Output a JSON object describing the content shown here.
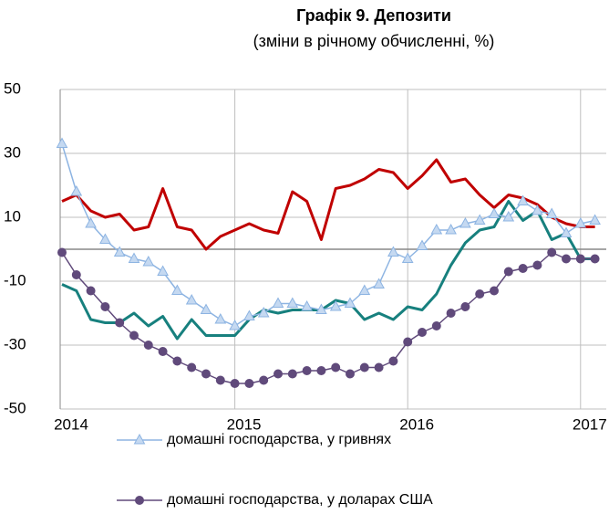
{
  "chart_data": {
    "type": "line",
    "title": "Графік 9. Депозити",
    "subtitle": "(зміни в річному обчисленні, %)",
    "categories": [
      "2014",
      null,
      null,
      null,
      null,
      null,
      null,
      null,
      null,
      null,
      null,
      null,
      "2015",
      null,
      null,
      null,
      null,
      null,
      null,
      null,
      null,
      null,
      null,
      null,
      "2016",
      null,
      null,
      null,
      null,
      null,
      null,
      null,
      null,
      null,
      null,
      null,
      "2017",
      null
    ],
    "series": [
      {
        "name": "домашні господарства, у гривнях",
        "color": "#8db4e2",
        "marker": "triangle",
        "values": [
          33,
          18,
          8,
          3,
          -1,
          -3,
          -4,
          -7,
          -13,
          -16,
          -19,
          -22,
          -24,
          -21,
          -20,
          -17,
          -17,
          -18,
          -19,
          -18,
          -17,
          -13,
          -11,
          -1,
          -3,
          1,
          6,
          6,
          8,
          9,
          11,
          10,
          15,
          12,
          11,
          5,
          8,
          9
        ]
      },
      {
        "name": "домашні господарства, у доларах США",
        "color": "#604a7b",
        "marker": "circle",
        "values": [
          -1,
          -8,
          -13,
          -18,
          -23,
          -27,
          -30,
          -32,
          -35,
          -37,
          -39,
          -41,
          -42,
          -42,
          -41,
          -39,
          -39,
          -38,
          -38,
          -37,
          -39,
          -37,
          -37,
          -35,
          -29,
          -26,
          -24,
          -20,
          -18,
          -14,
          -13,
          -7,
          -6,
          -5,
          -1,
          -3,
          -3,
          -3
        ]
      },
      {
        "color": "#17807e",
        "values": [
          -11,
          -13,
          -22,
          -23,
          -23,
          -20,
          -24,
          -21,
          -28,
          -22,
          -27,
          -27,
          -27,
          -22,
          -19,
          -20,
          -19,
          -19,
          -19,
          -16,
          -17,
          -22,
          -20,
          -22,
          -18,
          -19,
          -14,
          -5,
          2,
          6,
          7,
          15,
          9,
          12,
          3,
          5,
          -3,
          -3
        ]
      },
      {
        "color": "#c00000",
        "values": [
          15,
          17,
          12,
          10,
          11,
          6,
          7,
          19,
          7,
          6,
          0,
          4,
          6,
          8,
          6,
          5,
          18,
          15,
          3,
          19,
          20,
          22,
          25,
          24,
          19,
          23,
          28,
          21,
          22,
          17,
          13,
          17,
          16,
          14,
          10,
          8,
          7,
          7
        ]
      }
    ],
    "ylim": [
      -50,
      50
    ],
    "yticks": [
      -50,
      -30,
      -10,
      10,
      30,
      50
    ],
    "grid": true
  }
}
